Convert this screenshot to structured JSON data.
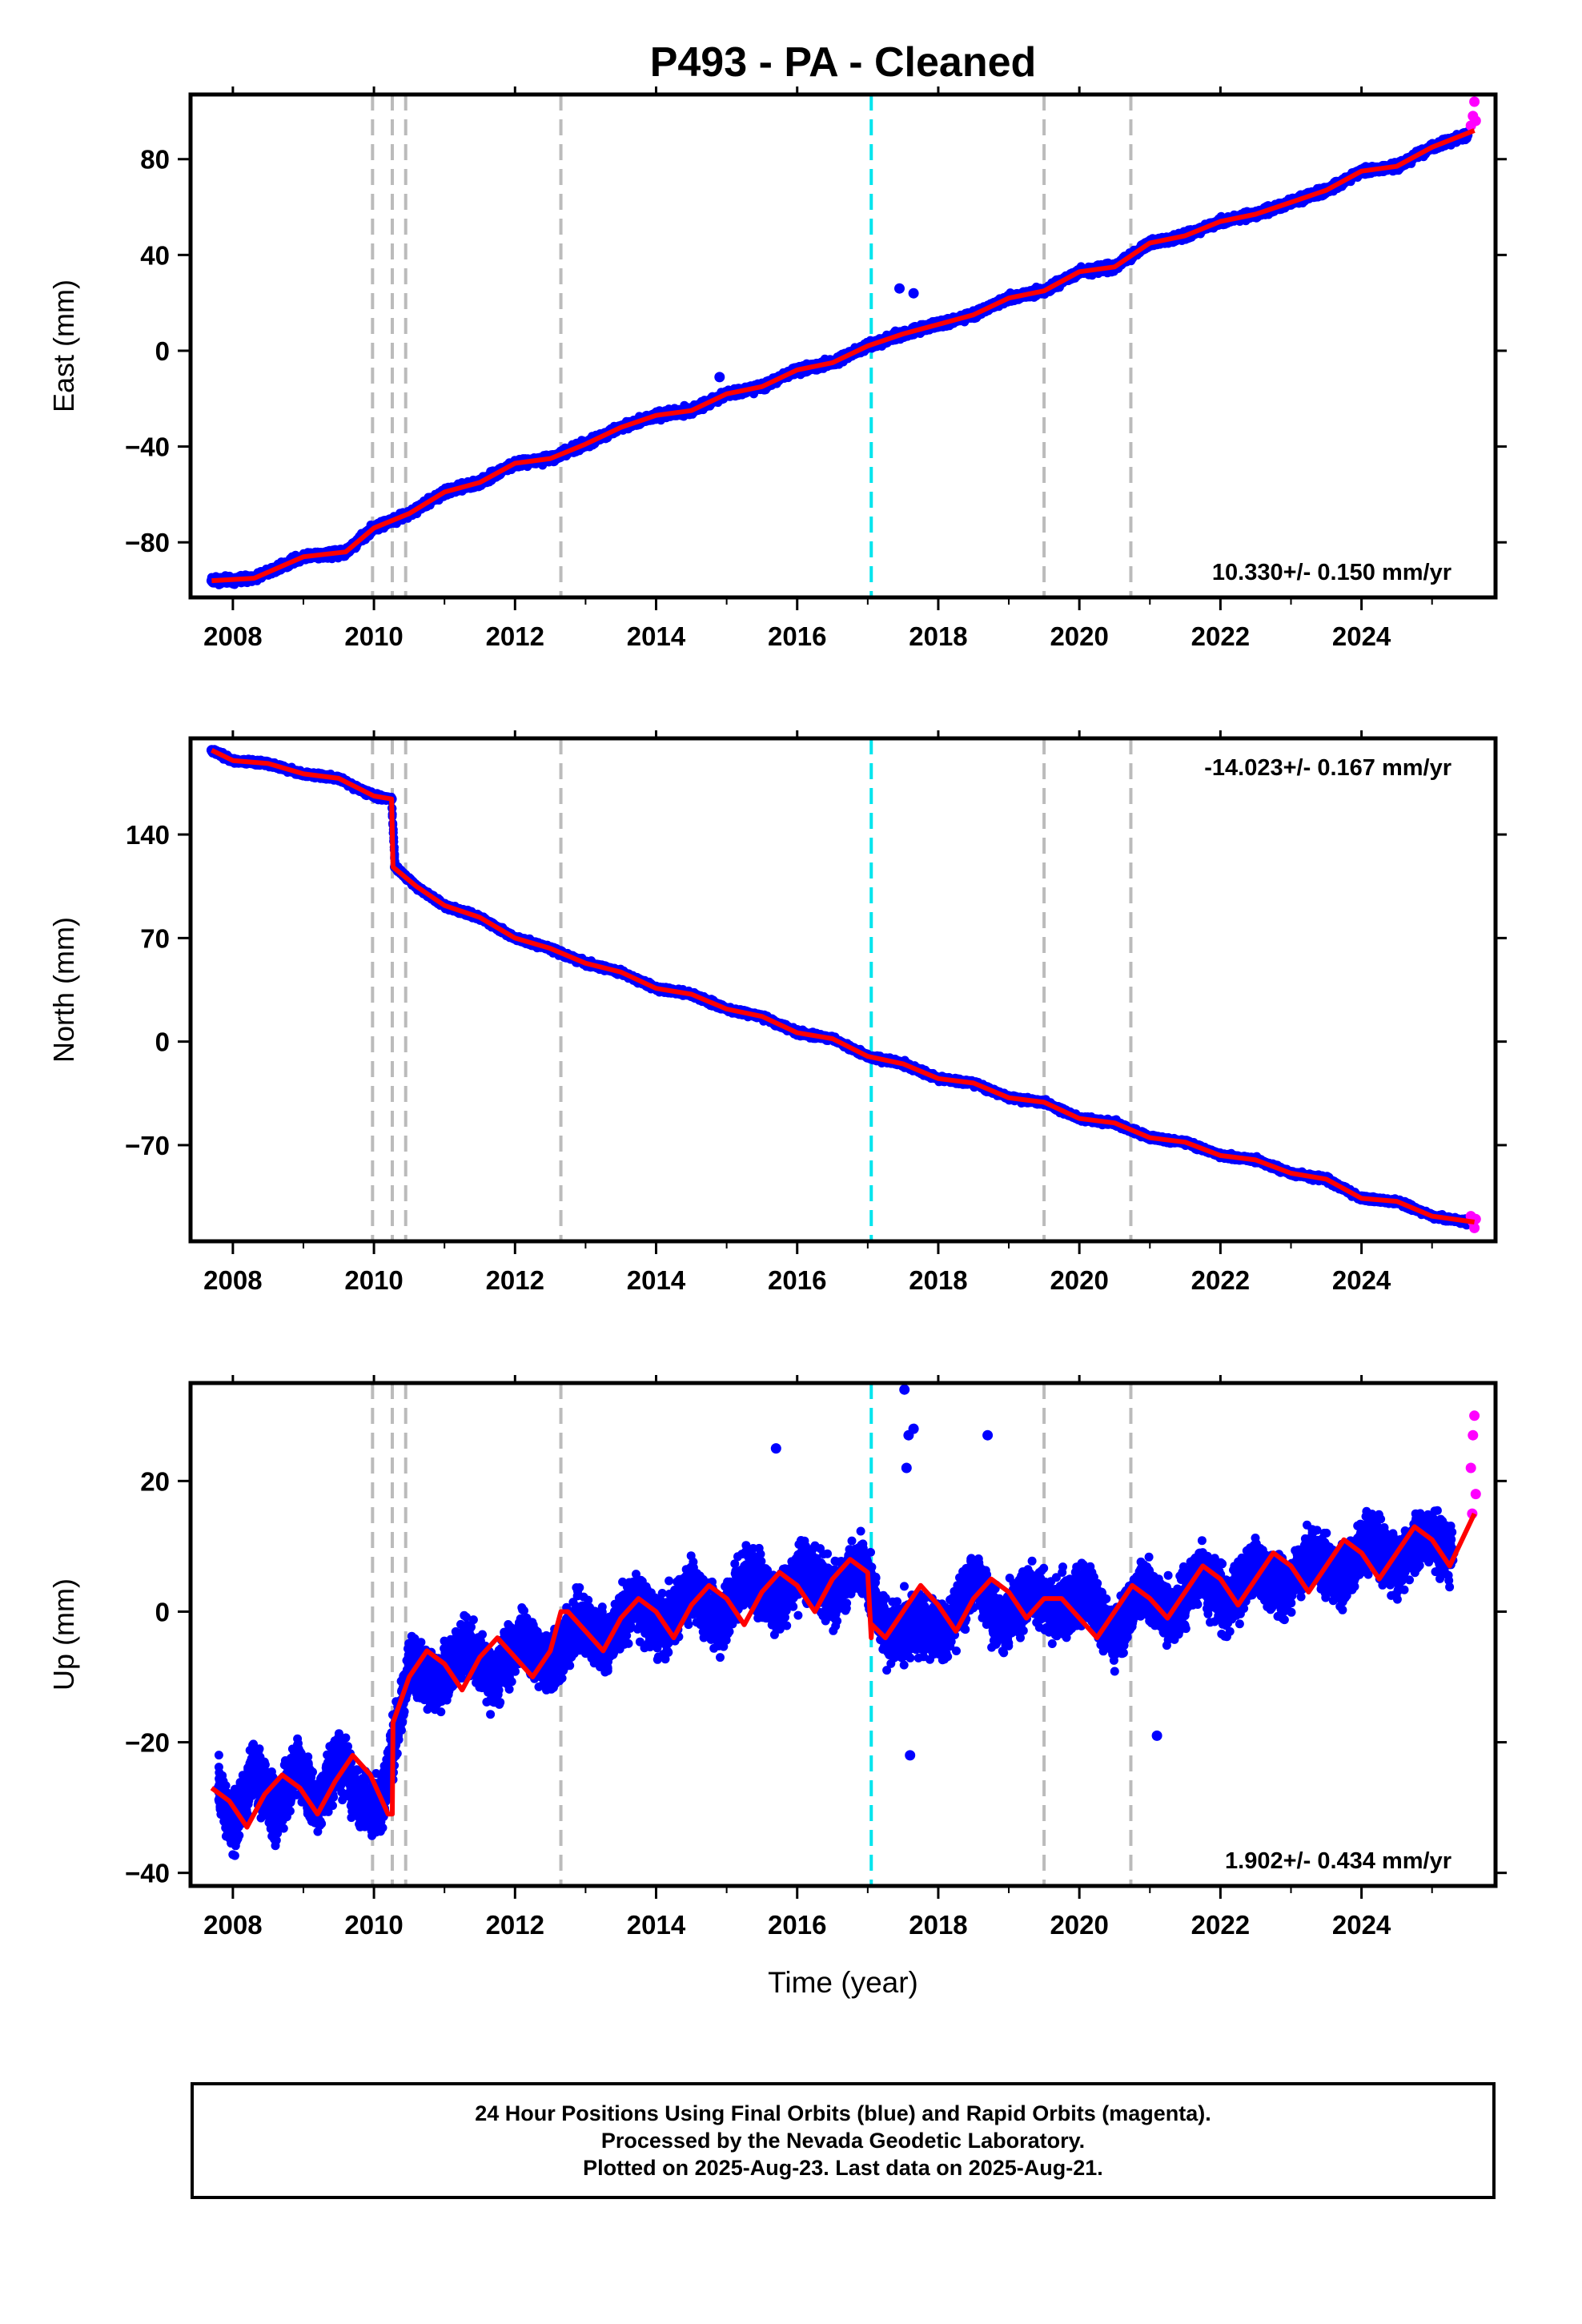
{
  "title": "P493  - PA - Cleaned",
  "xlabel": "Time (year)",
  "colors": {
    "final_orbits": "#0000ff",
    "rapid_orbits": "#ff00ff",
    "model": "#ff0000",
    "equipment_change_lines": "#bbbbbb",
    "earthquake_line": "#00e5ee"
  },
  "footer": {
    "line1": "24 Hour Positions Using Final Orbits (blue) and Rapid Orbits (magenta).",
    "line2": "Processed by the Nevada Geodetic Laboratory.",
    "line3": "Plotted on 2025-Aug-23. Last data on 2025-Aug-21."
  },
  "chart_data": [
    {
      "type": "scatter",
      "panel": "east",
      "ylabel": "East (mm)",
      "xlim": [
        2007.4,
        2025.9
      ],
      "ylim": [
        -103,
        107
      ],
      "xticks": [
        2008,
        2010,
        2012,
        2014,
        2016,
        2018,
        2020,
        2022,
        2024
      ],
      "yticks": [
        -80,
        -40,
        0,
        40,
        80
      ],
      "rate_label": "10.330+/- 0.150 mm/yr",
      "rate_label_position": "bottom-right",
      "grey_dashed_lines": [
        2009.98,
        2010.26,
        2010.45,
        2012.65,
        2019.5,
        2020.73
      ],
      "cyan_dashed_lines": [
        2017.05
      ],
      "offsets": [],
      "series": [
        {
          "color": "blue",
          "x": [
            2007.7,
            2008.3,
            2009.0,
            2009.6,
            2010.0,
            2010.5,
            2011.0,
            2011.5,
            2012.0,
            2012.5,
            2013.0,
            2013.5,
            2014.0,
            2014.5,
            2015.0,
            2015.5,
            2016.0,
            2016.5,
            2017.0,
            2017.5,
            2018.0,
            2018.5,
            2019.0,
            2019.5,
            2020.0,
            2020.5,
            2021.0,
            2021.5,
            2022.0,
            2022.5,
            2023.0,
            2023.5,
            2024.0,
            2024.5,
            2025.0,
            2025.5
          ],
          "y": [
            -96,
            -95,
            -86,
            -84,
            -74,
            -68,
            -59,
            -55,
            -47,
            -45,
            -39,
            -32,
            -27,
            -25,
            -18,
            -15,
            -8,
            -5,
            2,
            7,
            11,
            15,
            22,
            25,
            33,
            35,
            45,
            48,
            54,
            57,
            62,
            67,
            75,
            77,
            85,
            90
          ]
        },
        {
          "color": "blue",
          "x": [
            2014.9,
            2017.45,
            2017.65
          ],
          "y": [
            -11,
            26,
            24
          ]
        },
        {
          "color": "magenta",
          "x": [
            2025.55,
            2025.58,
            2025.6,
            2025.62
          ],
          "y": [
            94,
            98,
            104,
            96
          ]
        }
      ],
      "model": {
        "color": "red",
        "x": [
          2007.7,
          2008.3,
          2009.0,
          2009.6,
          2010.0,
          2010.5,
          2011.0,
          2011.5,
          2012.0,
          2012.5,
          2013.0,
          2013.5,
          2014.0,
          2014.5,
          2015.0,
          2015.5,
          2016.0,
          2016.5,
          2017.0,
          2017.5,
          2018.0,
          2018.5,
          2019.0,
          2019.5,
          2020.0,
          2020.5,
          2021.0,
          2021.5,
          2022.0,
          2022.5,
          2023.0,
          2023.5,
          2024.0,
          2024.5,
          2025.0,
          2025.6
        ],
        "y": [
          -96,
          -95,
          -86,
          -84,
          -74,
          -68,
          -59,
          -55,
          -47,
          -45,
          -39,
          -32,
          -27,
          -25,
          -18,
          -15,
          -8,
          -5,
          2,
          7,
          11,
          15,
          22,
          25,
          33,
          35,
          45,
          48,
          54,
          57,
          62,
          67,
          75,
          77,
          85,
          92
        ]
      }
    },
    {
      "type": "scatter",
      "panel": "north",
      "ylabel": "North (mm)",
      "xlim": [
        2007.4,
        2025.9
      ],
      "ylim": [
        -135,
        205
      ],
      "xticks": [
        2008,
        2010,
        2012,
        2014,
        2016,
        2018,
        2020,
        2022,
        2024
      ],
      "yticks": [
        -70,
        0,
        70,
        140
      ],
      "rate_label": "-14.023+/- 0.167 mm/yr",
      "rate_label_position": "top-right",
      "grey_dashed_lines": [
        2009.98,
        2010.26,
        2010.45,
        2012.65,
        2019.5,
        2020.73
      ],
      "cyan_dashed_lines": [
        2017.05
      ],
      "offsets": [
        {
          "x": 2010.26,
          "from": 163,
          "to": 118
        }
      ],
      "series": [
        {
          "color": "blue",
          "x": [
            2007.7,
            2008.0,
            2008.5,
            2009.0,
            2009.5,
            2010.0,
            2010.25,
            2010.3,
            2010.6,
            2011.0,
            2011.5,
            2012.0,
            2012.5,
            2013.0,
            2013.5,
            2014.0,
            2014.5,
            2015.0,
            2015.5,
            2016.0,
            2016.5,
            2017.0,
            2017.5,
            2018.0,
            2018.5,
            2019.0,
            2019.5,
            2020.0,
            2020.5,
            2021.0,
            2021.5,
            2022.0,
            2022.5,
            2023.0,
            2023.5,
            2024.0,
            2024.5,
            2025.0,
            2025.5
          ],
          "y": [
            197,
            190,
            188,
            181,
            178,
            166,
            164,
            118,
            105,
            92,
            84,
            70,
            63,
            53,
            47,
            36,
            32,
            22,
            17,
            6,
            2,
            -10,
            -15,
            -25,
            -28,
            -38,
            -41,
            -52,
            -55,
            -65,
            -68,
            -77,
            -80,
            -89,
            -93,
            -106,
            -108,
            -118,
            -122
          ]
        },
        {
          "color": "magenta",
          "x": [
            2025.55,
            2025.58,
            2025.6,
            2025.62
          ],
          "y": [
            -118,
            -122,
            -126,
            -120
          ]
        }
      ],
      "model": {
        "color": "red",
        "x": [
          2007.7,
          2008.0,
          2008.5,
          2009.0,
          2009.5,
          2010.0,
          2010.25,
          2010.27,
          2010.6,
          2011.0,
          2011.5,
          2012.0,
          2012.5,
          2013.0,
          2013.5,
          2014.0,
          2014.5,
          2015.0,
          2015.5,
          2016.0,
          2016.5,
          2017.0,
          2017.5,
          2018.0,
          2018.5,
          2019.0,
          2019.5,
          2020.0,
          2020.5,
          2021.0,
          2021.5,
          2022.0,
          2022.5,
          2023.0,
          2023.5,
          2024.0,
          2024.5,
          2025.0,
          2025.6
        ],
        "y": [
          197,
          190,
          188,
          181,
          178,
          166,
          164,
          118,
          105,
          92,
          84,
          70,
          63,
          53,
          47,
          36,
          32,
          22,
          17,
          6,
          2,
          -10,
          -15,
          -25,
          -28,
          -38,
          -41,
          -52,
          -55,
          -65,
          -68,
          -77,
          -80,
          -89,
          -93,
          -106,
          -108,
          -118,
          -122
        ]
      }
    },
    {
      "type": "scatter",
      "panel": "up",
      "ylabel": "Up (mm)",
      "xlim": [
        2007.4,
        2025.9
      ],
      "ylim": [
        -42,
        35
      ],
      "xticks": [
        2008,
        2010,
        2012,
        2014,
        2016,
        2018,
        2020,
        2022,
        2024
      ],
      "yticks": [
        -40,
        -20,
        0,
        20
      ],
      "rate_label": "1.902+/- 0.434 mm/yr",
      "rate_label_position": "bottom-right",
      "grey_dashed_lines": [
        2009.98,
        2010.26,
        2010.45,
        2012.65,
        2019.5,
        2020.73
      ],
      "cyan_dashed_lines": [
        2017.05
      ],
      "offsets": [
        {
          "x": 2010.26,
          "from": -31,
          "to": -18
        }
      ],
      "series": [
        {
          "color": "blue",
          "x": [
            2007.8,
            2008.0,
            2008.3,
            2008.6,
            2008.9,
            2009.2,
            2009.5,
            2009.8,
            2010.1,
            2010.5,
            2010.9,
            2011.3,
            2011.7,
            2012.1,
            2012.5,
            2012.9,
            2013.3,
            2013.7,
            2014.1,
            2014.5,
            2014.9,
            2015.3,
            2015.7,
            2016.1,
            2016.5,
            2016.9,
            2017.3,
            2017.7,
            2018.1,
            2018.5,
            2018.9,
            2019.3,
            2019.7,
            2020.1,
            2020.5,
            2020.9,
            2021.3,
            2021.7,
            2022.1,
            2022.5,
            2022.9,
            2023.3,
            2023.7,
            2024.1,
            2024.5,
            2024.9,
            2025.3
          ],
          "y": [
            -27,
            -33,
            -24,
            -31,
            -23,
            -30,
            -22,
            -29,
            -30,
            -8,
            -11,
            -5,
            -10,
            -4,
            -8,
            -1,
            -5,
            2,
            -3,
            4,
            -2,
            6,
            1,
            7,
            2,
            8,
            -4,
            -2,
            -3,
            5,
            -2,
            3,
            0,
            3,
            -4,
            4,
            -1,
            6,
            1,
            7,
            3,
            9,
            5,
            11,
            7,
            12,
            9
          ]
        },
        {
          "color": "blue",
          "x": [
            2017.52,
            2017.58,
            2017.65,
            2017.55,
            2018.7,
            2015.7,
            2017.6,
            2021.1
          ],
          "y": [
            34,
            27,
            28,
            22,
            27,
            25,
            -22,
            -19
          ]
        },
        {
          "color": "magenta",
          "x": [
            2025.55,
            2025.58,
            2025.6,
            2025.62,
            2025.57
          ],
          "y": [
            22,
            27,
            30,
            18,
            15
          ]
        }
      ],
      "model": {
        "color": "red",
        "x": [
          2007.7,
          2007.95,
          2008.2,
          2008.45,
          2008.7,
          2008.95,
          2009.2,
          2009.45,
          2009.7,
          2009.95,
          2010.2,
          2010.26,
          2010.27,
          2010.5,
          2010.75,
          2011.0,
          2011.25,
          2011.5,
          2011.75,
          2012.0,
          2012.25,
          2012.5,
          2012.65,
          2012.75,
          2013.0,
          2013.25,
          2013.5,
          2013.75,
          2014.0,
          2014.25,
          2014.5,
          2014.75,
          2015.0,
          2015.25,
          2015.5,
          2015.75,
          2016.0,
          2016.25,
          2016.5,
          2016.75,
          2017.0,
          2017.05,
          2017.06,
          2017.25,
          2017.5,
          2017.75,
          2018.0,
          2018.25,
          2018.5,
          2018.75,
          2019.0,
          2019.25,
          2019.5,
          2019.75,
          2020.0,
          2020.25,
          2020.5,
          2020.75,
          2021.0,
          2021.25,
          2021.5,
          2021.75,
          2022.0,
          2022.25,
          2022.5,
          2022.75,
          2023.0,
          2023.25,
          2023.5,
          2023.75,
          2024.0,
          2024.25,
          2024.5,
          2024.75,
          2025.0,
          2025.25,
          2025.6
        ],
        "y": [
          -27,
          -29,
          -33,
          -28,
          -25,
          -27,
          -31,
          -26,
          -22,
          -25,
          -31,
          -31,
          -17,
          -10,
          -6,
          -8,
          -12,
          -7,
          -4,
          -7,
          -10,
          -6,
          0,
          0,
          -3,
          -6,
          -1,
          2,
          0,
          -4,
          1,
          4,
          2,
          -2,
          3,
          6,
          4,
          0,
          5,
          8,
          6,
          -4,
          -2,
          -4,
          0,
          4,
          1,
          -3,
          2,
          5,
          3,
          -1,
          2,
          2,
          -1,
          -4,
          0,
          4,
          2,
          -1,
          3,
          7,
          5,
          1,
          5,
          9,
          7,
          3,
          7,
          11,
          9,
          5,
          9,
          13,
          11,
          7,
          15
        ]
      }
    }
  ]
}
